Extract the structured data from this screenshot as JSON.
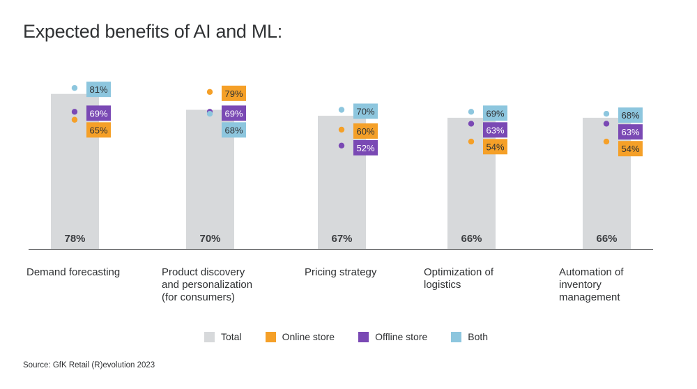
{
  "title": "Expected benefits of AI and ML:",
  "source": "Source: GfK Retail (R)evolution 2023",
  "colors": {
    "total": "#d7d9db",
    "online": "#f5a028",
    "offline": "#7a49b4",
    "both": "#8dc6de",
    "axis": "#2f3133"
  },
  "chart_data": {
    "type": "bar",
    "title": "Expected benefits of AI and ML:",
    "categories": [
      "Demand forecasting",
      "Product discovery\nand personalization\n(for consumers)",
      "Pricing strategy",
      "Optimization of\nlogistics",
      "Automation of\ninventory\nmanagement"
    ],
    "ylim": [
      0,
      100
    ],
    "legend_position": "bottom",
    "grid": false,
    "series": [
      {
        "name": "Total",
        "kind": "bar",
        "values": [
          78,
          70,
          67,
          66,
          66
        ]
      },
      {
        "name": "Online store",
        "kind": "point",
        "values": [
          65,
          79,
          60,
          54,
          54
        ]
      },
      {
        "name": "Offline store",
        "kind": "point",
        "values": [
          69,
          69,
          52,
          63,
          63
        ]
      },
      {
        "name": "Both",
        "kind": "point",
        "values": [
          81,
          68,
          70,
          69,
          68
        ]
      }
    ]
  },
  "legend": [
    {
      "label": "Total",
      "color_key": "total"
    },
    {
      "label": "Online store",
      "color_key": "online"
    },
    {
      "label": "Offline store",
      "color_key": "offline"
    },
    {
      "label": "Both",
      "color_key": "both"
    }
  ]
}
